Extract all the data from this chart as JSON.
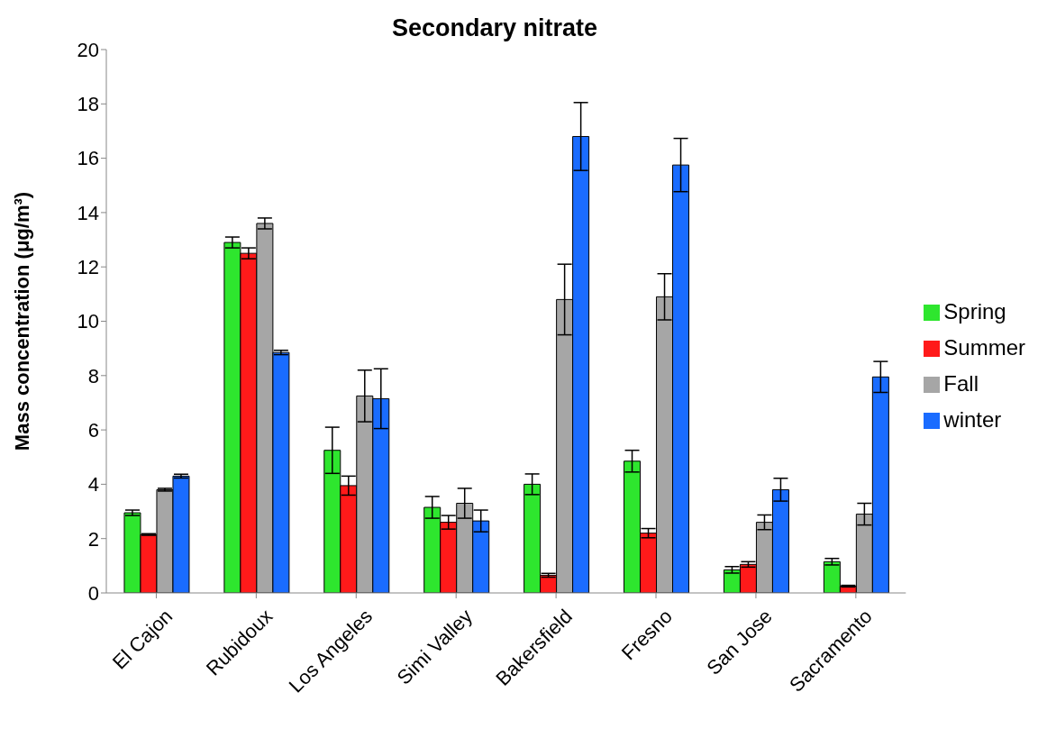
{
  "chart_data": {
    "type": "bar",
    "title": "Secondary nitrate",
    "ylabel": "Mass concentration (μg/m³)",
    "categories": [
      "El Cajon",
      "Rubidoux",
      "Los Angeles",
      "Simi Valley",
      "Bakersfield",
      "Fresno",
      "San Jose",
      "Sacramento"
    ],
    "series": [
      {
        "name": "Spring",
        "color": "#2ee62e",
        "values": [
          2.95,
          12.9,
          5.25,
          3.15,
          4.0,
          4.85,
          0.85,
          1.15
        ],
        "errors": [
          0.1,
          0.2,
          0.85,
          0.4,
          0.38,
          0.4,
          0.12,
          0.12
        ]
      },
      {
        "name": "Summer",
        "color": "#ff1a1a",
        "values": [
          2.15,
          12.5,
          3.95,
          2.6,
          0.65,
          2.2,
          1.05,
          0.25
        ],
        "errors": [
          0.03,
          0.2,
          0.35,
          0.25,
          0.07,
          0.17,
          0.1,
          0.03
        ]
      },
      {
        "name": "Fall",
        "color": "#a6a6a6",
        "values": [
          3.8,
          13.6,
          7.25,
          3.3,
          10.8,
          10.9,
          2.6,
          2.9
        ],
        "errors": [
          0.05,
          0.2,
          0.95,
          0.55,
          1.3,
          0.85,
          0.27,
          0.4
        ]
      },
      {
        "name": "winter",
        "color": "#1a6cff",
        "values": [
          4.3,
          8.85,
          7.15,
          2.65,
          16.8,
          15.75,
          3.8,
          7.95
        ],
        "errors": [
          0.07,
          0.08,
          1.1,
          0.4,
          1.25,
          0.98,
          0.42,
          0.57
        ]
      }
    ],
    "ylim": [
      0,
      20
    ],
    "yticks": [
      0,
      2,
      4,
      6,
      8,
      10,
      12,
      14,
      16,
      18,
      20
    ],
    "grid": false,
    "legend": "right"
  }
}
